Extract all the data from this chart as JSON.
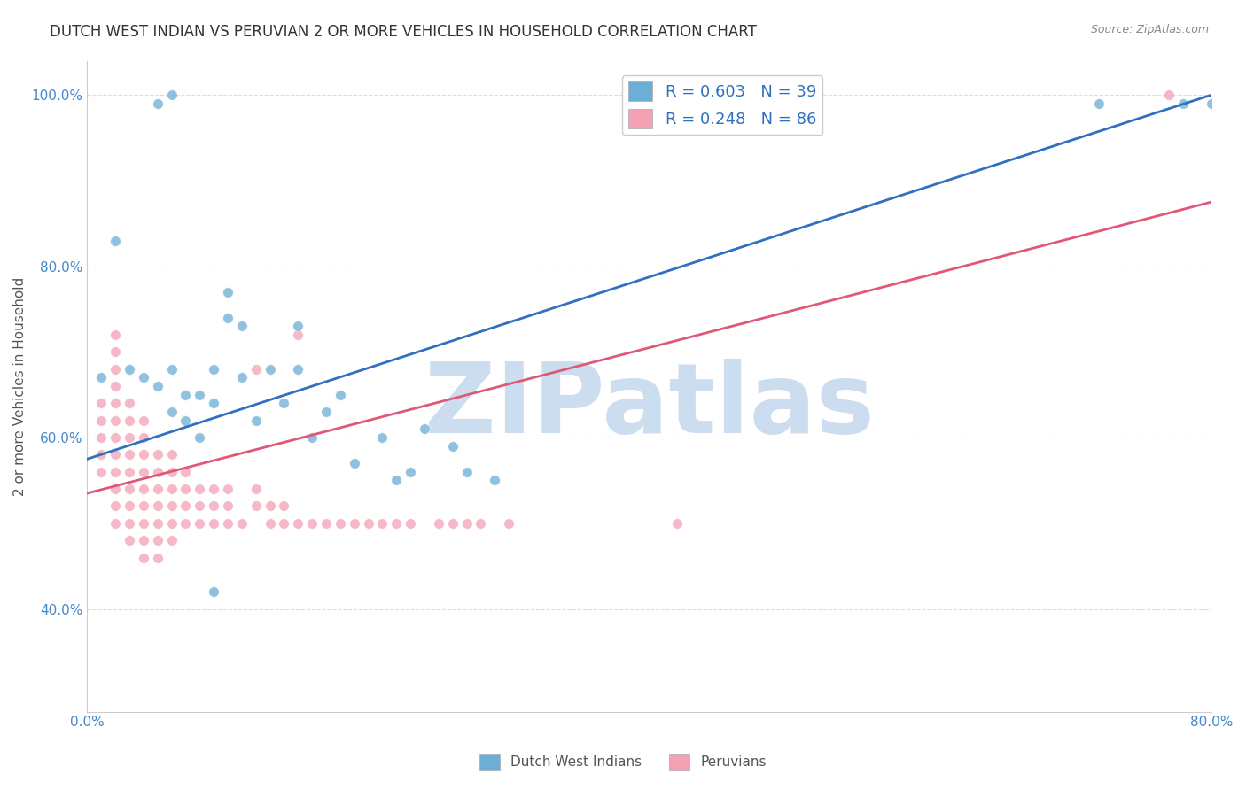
{
  "title": "DUTCH WEST INDIAN VS PERUVIAN 2 OR MORE VEHICLES IN HOUSEHOLD CORRELATION CHART",
  "source": "Source: ZipAtlas.com",
  "ylabel": "2 or more Vehicles in Household",
  "x_min": 0.0,
  "x_max": 0.8,
  "y_min": 0.28,
  "y_max": 1.04,
  "x_ticks": [
    0.0,
    0.1,
    0.2,
    0.3,
    0.4,
    0.5,
    0.6,
    0.7,
    0.8
  ],
  "x_tick_labels": [
    "0.0%",
    "",
    "",
    "",
    "",
    "",
    "",
    "",
    "80.0%"
  ],
  "y_ticks": [
    0.4,
    0.6,
    0.8,
    1.0
  ],
  "y_tick_labels": [
    "40.0%",
    "60.0%",
    "80.0%",
    "100.0%"
  ],
  "blue_color": "#6baed6",
  "pink_color": "#f4a0b5",
  "blue_line_color": "#3070c0",
  "pink_line_color": "#e05878",
  "legend_blue_text": "R = 0.603   N = 39",
  "legend_pink_text": "R = 0.248   N = 86",
  "watermark": "ZIPatlas",
  "legend_label_blue": "Dutch West Indians",
  "legend_label_pink": "Peruvians",
  "blue_scatter_x": [
    0.01,
    0.02,
    0.03,
    0.04,
    0.05,
    0.06,
    0.06,
    0.07,
    0.07,
    0.08,
    0.08,
    0.09,
    0.09,
    0.1,
    0.1,
    0.11,
    0.11,
    0.12,
    0.13,
    0.14,
    0.15,
    0.15,
    0.16,
    0.17,
    0.18,
    0.19,
    0.21,
    0.22,
    0.23,
    0.24,
    0.26,
    0.27,
    0.29,
    0.05,
    0.06,
    0.09,
    0.72,
    0.78,
    0.8
  ],
  "blue_scatter_y": [
    0.67,
    0.83,
    0.68,
    0.67,
    0.66,
    0.63,
    0.68,
    0.62,
    0.65,
    0.65,
    0.6,
    0.64,
    0.68,
    0.74,
    0.77,
    0.67,
    0.73,
    0.62,
    0.68,
    0.64,
    0.73,
    0.68,
    0.6,
    0.63,
    0.65,
    0.57,
    0.6,
    0.55,
    0.56,
    0.61,
    0.59,
    0.56,
    0.55,
    0.99,
    1.0,
    0.42,
    0.99,
    0.99,
    0.99
  ],
  "pink_scatter_x": [
    0.01,
    0.01,
    0.01,
    0.01,
    0.01,
    0.02,
    0.02,
    0.02,
    0.02,
    0.02,
    0.02,
    0.02,
    0.02,
    0.02,
    0.02,
    0.02,
    0.02,
    0.03,
    0.03,
    0.03,
    0.03,
    0.03,
    0.03,
    0.03,
    0.03,
    0.03,
    0.04,
    0.04,
    0.04,
    0.04,
    0.04,
    0.04,
    0.04,
    0.04,
    0.04,
    0.05,
    0.05,
    0.05,
    0.05,
    0.05,
    0.05,
    0.05,
    0.06,
    0.06,
    0.06,
    0.06,
    0.06,
    0.06,
    0.07,
    0.07,
    0.07,
    0.07,
    0.08,
    0.08,
    0.08,
    0.09,
    0.09,
    0.09,
    0.1,
    0.1,
    0.1,
    0.11,
    0.12,
    0.12,
    0.12,
    0.13,
    0.13,
    0.14,
    0.14,
    0.15,
    0.15,
    0.16,
    0.17,
    0.18,
    0.19,
    0.2,
    0.21,
    0.22,
    0.23,
    0.25,
    0.26,
    0.27,
    0.28,
    0.3,
    0.42,
    0.77
  ],
  "pink_scatter_y": [
    0.56,
    0.58,
    0.6,
    0.62,
    0.64,
    0.5,
    0.52,
    0.54,
    0.56,
    0.58,
    0.6,
    0.62,
    0.64,
    0.66,
    0.68,
    0.7,
    0.72,
    0.48,
    0.5,
    0.52,
    0.54,
    0.56,
    0.58,
    0.6,
    0.62,
    0.64,
    0.46,
    0.48,
    0.5,
    0.52,
    0.54,
    0.56,
    0.58,
    0.6,
    0.62,
    0.46,
    0.48,
    0.5,
    0.52,
    0.54,
    0.56,
    0.58,
    0.48,
    0.5,
    0.52,
    0.54,
    0.56,
    0.58,
    0.5,
    0.52,
    0.54,
    0.56,
    0.5,
    0.52,
    0.54,
    0.5,
    0.52,
    0.54,
    0.5,
    0.52,
    0.54,
    0.5,
    0.52,
    0.54,
    0.68,
    0.5,
    0.52,
    0.5,
    0.52,
    0.5,
    0.72,
    0.5,
    0.5,
    0.5,
    0.5,
    0.5,
    0.5,
    0.5,
    0.5,
    0.5,
    0.5,
    0.5,
    0.5,
    0.5,
    0.5,
    1.0
  ],
  "blue_line_x": [
    0.0,
    0.8
  ],
  "blue_line_y": [
    0.575,
    1.0
  ],
  "pink_line_x": [
    0.0,
    0.8
  ],
  "pink_line_y": [
    0.535,
    0.875
  ],
  "grid_color": "#dddddd",
  "background_color": "#ffffff",
  "title_fontsize": 12,
  "axis_label_fontsize": 11,
  "tick_fontsize": 11,
  "watermark_color": "#ccddf0",
  "watermark_fontsize": 80
}
